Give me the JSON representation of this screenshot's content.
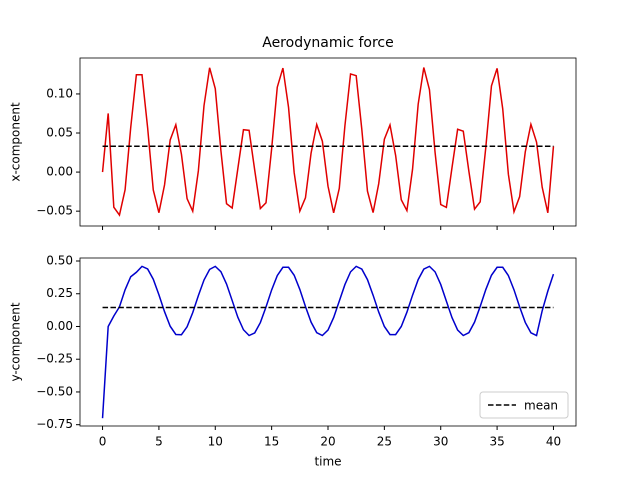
{
  "chart_data": [
    {
      "type": "line",
      "title": "Aerodynamic force",
      "ylabel": "x-component",
      "x": [
        0,
        0.5,
        1,
        1.5,
        2,
        2.5,
        3,
        3.5,
        4,
        4.5,
        5,
        5.5,
        6,
        6.5,
        7,
        7.5,
        8,
        8.5,
        9,
        9.5,
        10,
        10.5,
        11,
        11.5,
        12,
        12.5,
        13,
        13.5,
        14,
        14.5,
        15,
        15.5,
        16,
        16.5,
        17,
        17.5,
        18,
        18.5,
        19,
        19.5,
        20,
        20.5,
        21,
        21.5,
        22,
        22.5,
        23,
        23.5,
        24,
        24.5,
        25,
        25.5,
        26,
        26.5,
        27,
        27.5,
        28,
        28.5,
        29,
        29.5,
        30,
        30.5,
        31,
        31.5,
        32,
        32.5,
        33,
        33.5,
        34,
        34.5,
        35,
        35.5,
        36,
        36.5,
        37,
        37.5,
        38,
        38.5,
        39,
        39.5,
        40
      ],
      "series": [
        {
          "color": "#e00000",
          "values": [
            0,
            0.075,
            -0.045,
            -0.055,
            -0.0227,
            0.0571,
            0.1245,
            0.1245,
            0.0567,
            -0.0229,
            -0.052,
            -0.0164,
            0.0411,
            0.0606,
            0.0227,
            -0.0341,
            -0.05,
            0.0016,
            0.085,
            0.1335,
            0.1068,
            0.0274,
            -0.0405,
            -0.046,
            0.0043,
            0.0542,
            0.0534,
            0.0023,
            -0.0467,
            -0.0393,
            0.0298,
            0.1086,
            0.1331,
            0.0828,
            -0.0008,
            -0.05,
            -0.0329,
            0.0245,
            0.0608,
            0.0395,
            -0.018,
            -0.0521,
            -0.0209,
            0.0592,
            0.1256,
            0.1234,
            0.0546,
            -0.0243,
            -0.0518,
            -0.0148,
            0.0421,
            0.0603,
            0.0213,
            -0.0354,
            -0.0493,
            0.0036,
            0.0869,
            0.1338,
            0.1054,
            0.025,
            -0.0415,
            -0.0452,
            0.0057,
            0.0548,
            0.0524,
            0.0007,
            -0.0474,
            -0.0381,
            0.0319,
            0.1103,
            0.1327,
            0.0809,
            -0.0027,
            -0.0508,
            -0.0315,
            0.0259,
            0.0611,
            0.0383,
            -0.0193,
            -0.0522,
            0.033
          ]
        }
      ],
      "reference": {
        "value": 0.033,
        "color": "#000000"
      },
      "xlim": [
        -2,
        42
      ],
      "xticks": [
        0,
        5,
        10,
        15,
        20,
        25,
        30,
        35,
        40
      ],
      "ylim": [
        -0.069,
        0.146
      ],
      "yticks": [
        {
          "value": -0.05,
          "label": "−0.05"
        },
        {
          "value": 0,
          "label": "0.00"
        },
        {
          "value": 0.05,
          "label": "0.05"
        },
        {
          "value": 0.1,
          "label": "0.10"
        }
      ]
    },
    {
      "type": "line",
      "ylabel": "y-component",
      "xlabel": "time",
      "x": [
        0,
        0.5,
        1,
        1.5,
        2,
        2.5,
        3,
        3.5,
        4,
        4.5,
        5,
        5.5,
        6,
        6.5,
        7,
        7.5,
        8,
        8.5,
        9,
        9.5,
        10,
        10.5,
        11,
        11.5,
        12,
        12.5,
        13,
        13.5,
        14,
        14.5,
        15,
        15.5,
        16,
        16.5,
        17,
        17.5,
        18,
        18.5,
        19,
        19.5,
        20,
        20.5,
        21,
        21.5,
        22,
        22.5,
        23,
        23.5,
        24,
        24.5,
        25,
        25.5,
        26,
        26.5,
        27,
        27.5,
        28,
        28.5,
        29,
        29.5,
        30,
        30.5,
        31,
        31.5,
        32,
        32.5,
        33,
        33.5,
        34,
        34.5,
        35,
        35.5,
        36,
        36.5,
        37,
        37.5,
        38,
        38.5,
        39,
        39.5,
        40
      ],
      "series": [
        {
          "color": "#0000cc",
          "values": [
            -0.7,
            0.0,
            0.08,
            0.15,
            0.28,
            0.38,
            0.414,
            0.459,
            0.439,
            0.361,
            0.242,
            0.113,
            0.002,
            -0.061,
            -0.063,
            -0.002,
            0.106,
            0.236,
            0.355,
            0.436,
            0.459,
            0.418,
            0.324,
            0.198,
            0.071,
            -0.025,
            -0.069,
            -0.049,
            0.03,
            0.149,
            0.279,
            0.389,
            0.452,
            0.452,
            0.391,
            0.283,
            0.153,
            0.033,
            -0.047,
            -0.069,
            -0.027,
            0.068,
            0.194,
            0.32,
            0.417,
            0.459,
            0.438,
            0.358,
            0.239,
            0.11,
            0.0,
            -0.062,
            -0.062,
            0.0,
            0.109,
            0.239,
            0.358,
            0.438,
            0.459,
            0.417,
            0.321,
            0.194,
            0.068,
            -0.027,
            -0.069,
            -0.047,
            0.033,
            0.153,
            0.282,
            0.391,
            0.452,
            0.452,
            0.389,
            0.28,
            0.15,
            0.031,
            -0.048,
            -0.069,
            0.12,
            0.27,
            0.4
          ]
        }
      ],
      "reference": {
        "name": "mean",
        "value": 0.145,
        "color": "#000000"
      },
      "legend": "lower right",
      "xlim": [
        -2,
        42
      ],
      "xticks": [
        0,
        5,
        10,
        15,
        20,
        25,
        30,
        35,
        40
      ],
      "ylim": [
        -0.76,
        0.523
      ],
      "yticks": [
        {
          "value": -0.75,
          "label": "−0.75"
        },
        {
          "value": -0.5,
          "label": "−0.50"
        },
        {
          "value": -0.25,
          "label": "−0.25"
        },
        {
          "value": 0,
          "label": "0.00"
        },
        0.25,
        {
          "value": 0.5,
          "label": "0.50"
        }
      ]
    }
  ]
}
